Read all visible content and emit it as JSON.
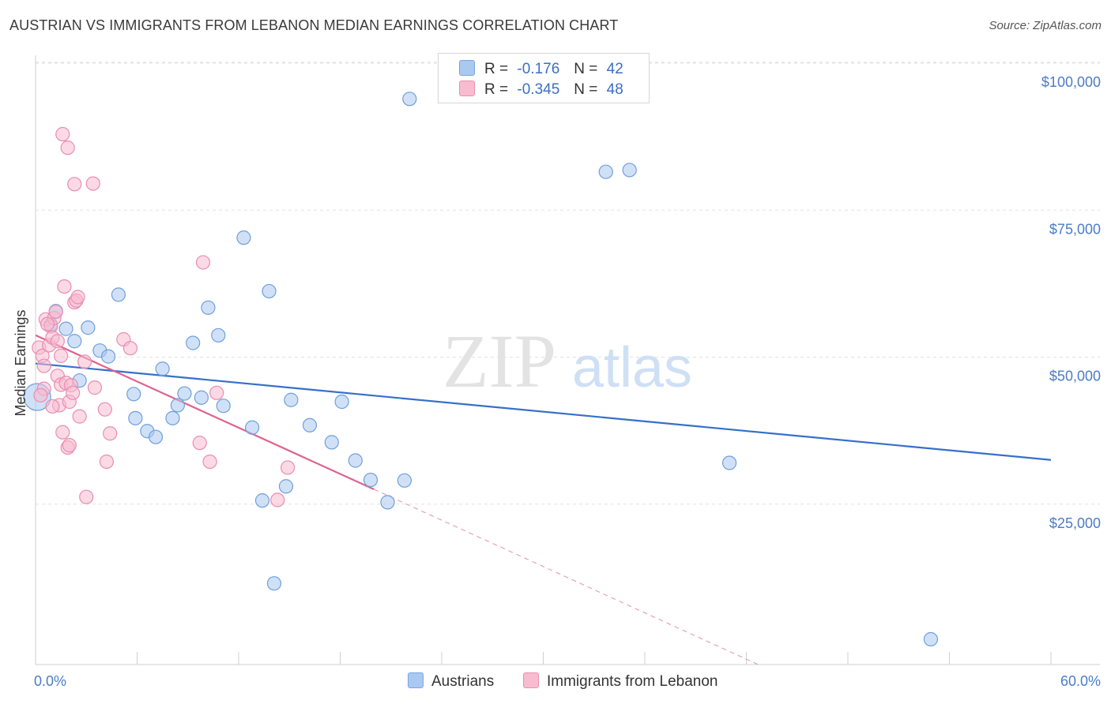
{
  "title": "AUSTRIAN VS IMMIGRANTS FROM LEBANON MEDIAN EARNINGS CORRELATION CHART",
  "source": "Source: ZipAtlas.com",
  "watermark": {
    "zip": "ZIP",
    "atlas": "atlas"
  },
  "legend": {
    "series": [
      {
        "r_label": "R =",
        "r_value": "-0.176",
        "n_label": "N =",
        "n_value": "42",
        "color": "#a9c9f0",
        "border": "#7aa6e0"
      },
      {
        "r_label": "R =",
        "r_value": "-0.345",
        "n_label": "N =",
        "n_value": "48",
        "color": "#f7bcd0",
        "border": "#ea8fb0"
      }
    ]
  },
  "bottom_legend": [
    "Austrians",
    "Immigrants from Lebanon"
  ],
  "chart_data": {
    "type": "scatter",
    "ylabel": "Median Earnings",
    "xlim": [
      0,
      60
    ],
    "ylim": [
      0,
      105000
    ],
    "x_tick_labels": {
      "left": "0.0%",
      "right": "60.0%"
    },
    "y_ticks": [
      {
        "value": 100000,
        "label": "$100,000"
      },
      {
        "value": 75000,
        "label": "$75,000"
      },
      {
        "value": 50000,
        "label": "$50,000"
      },
      {
        "value": 25000,
        "label": "$25,000"
      }
    ],
    "grid": true,
    "series": [
      {
        "name": "Austrians",
        "color": "#a9c9f0",
        "stroke": "#6f9fdc",
        "trend": {
          "x": [
            0,
            60
          ],
          "y": [
            51200,
            34800
          ],
          "color": "#3570c9"
        },
        "points": [
          [
            0.1,
            45500
          ],
          [
            0.9,
            57800
          ],
          [
            1.2,
            60100
          ],
          [
            1.8,
            57100
          ],
          [
            2.3,
            55000
          ],
          [
            2.6,
            48300
          ],
          [
            3.1,
            57300
          ],
          [
            3.8,
            53400
          ],
          [
            4.3,
            52400
          ],
          [
            4.9,
            62900
          ],
          [
            5.9,
            41900
          ],
          [
            5.8,
            46000
          ],
          [
            6.6,
            39700
          ],
          [
            7.1,
            38700
          ],
          [
            7.5,
            50300
          ],
          [
            8.1,
            41900
          ],
          [
            8.4,
            44100
          ],
          [
            8.8,
            46100
          ],
          [
            9.3,
            54700
          ],
          [
            9.8,
            45400
          ],
          [
            10.2,
            60700
          ],
          [
            11.1,
            44000
          ],
          [
            10.8,
            56000
          ],
          [
            12.3,
            72600
          ],
          [
            12.8,
            40300
          ],
          [
            13.4,
            27900
          ],
          [
            13.8,
            63500
          ],
          [
            14.1,
            13800
          ],
          [
            14.8,
            30300
          ],
          [
            15.1,
            45000
          ],
          [
            16.2,
            40700
          ],
          [
            17.5,
            37800
          ],
          [
            18.1,
            44700
          ],
          [
            18.9,
            34700
          ],
          [
            19.8,
            31400
          ],
          [
            20.8,
            27600
          ],
          [
            21.8,
            31300
          ],
          [
            22.1,
            96200
          ],
          [
            33.7,
            83800
          ],
          [
            35.1,
            84100
          ],
          [
            41.0,
            34300
          ],
          [
            52.9,
            4300
          ]
        ]
      },
      {
        "name": "Immigrants from Lebanon",
        "color": "#f7bcd0",
        "stroke": "#e98db0",
        "trend": {
          "x": [
            0,
            20
          ],
          "y": [
            56000,
            29800
          ],
          "color": "#e0628f"
        },
        "trend_dashed": {
          "x": [
            20,
            42.7
          ],
          "y": [
            29800,
            0
          ],
          "color": "#e6a0b8"
        },
        "points": [
          [
            0.2,
            53900
          ],
          [
            0.4,
            52500
          ],
          [
            0.5,
            46900
          ],
          [
            0.6,
            58700
          ],
          [
            0.8,
            54300
          ],
          [
            0.9,
            57500
          ],
          [
            1.0,
            55600
          ],
          [
            1.1,
            58900
          ],
          [
            1.2,
            60000
          ],
          [
            1.3,
            49100
          ],
          [
            1.4,
            44100
          ],
          [
            1.5,
            47600
          ],
          [
            1.5,
            52500
          ],
          [
            1.6,
            39500
          ],
          [
            1.7,
            64300
          ],
          [
            1.8,
            47900
          ],
          [
            1.9,
            36900
          ],
          [
            2.0,
            37300
          ],
          [
            1.6,
            90200
          ],
          [
            1.9,
            87900
          ],
          [
            2.0,
            44700
          ],
          [
            2.1,
            47500
          ],
          [
            2.2,
            46200
          ],
          [
            2.3,
            61600
          ],
          [
            2.4,
            61900
          ],
          [
            2.5,
            62500
          ],
          [
            2.3,
            81700
          ],
          [
            3.4,
            81800
          ],
          [
            3.0,
            28500
          ],
          [
            2.9,
            51500
          ],
          [
            3.5,
            47100
          ],
          [
            4.1,
            43400
          ],
          [
            4.2,
            34500
          ],
          [
            4.4,
            39300
          ],
          [
            5.2,
            55300
          ],
          [
            5.6,
            53800
          ],
          [
            9.7,
            37700
          ],
          [
            9.9,
            68400
          ],
          [
            10.3,
            34500
          ],
          [
            10.7,
            46200
          ],
          [
            14.3,
            28000
          ],
          [
            14.9,
            33500
          ],
          [
            0.3,
            45800
          ],
          [
            1.0,
            43900
          ],
          [
            0.7,
            57900
          ],
          [
            1.3,
            55000
          ],
          [
            2.6,
            42200
          ],
          [
            0.5,
            50800
          ]
        ]
      }
    ]
  }
}
